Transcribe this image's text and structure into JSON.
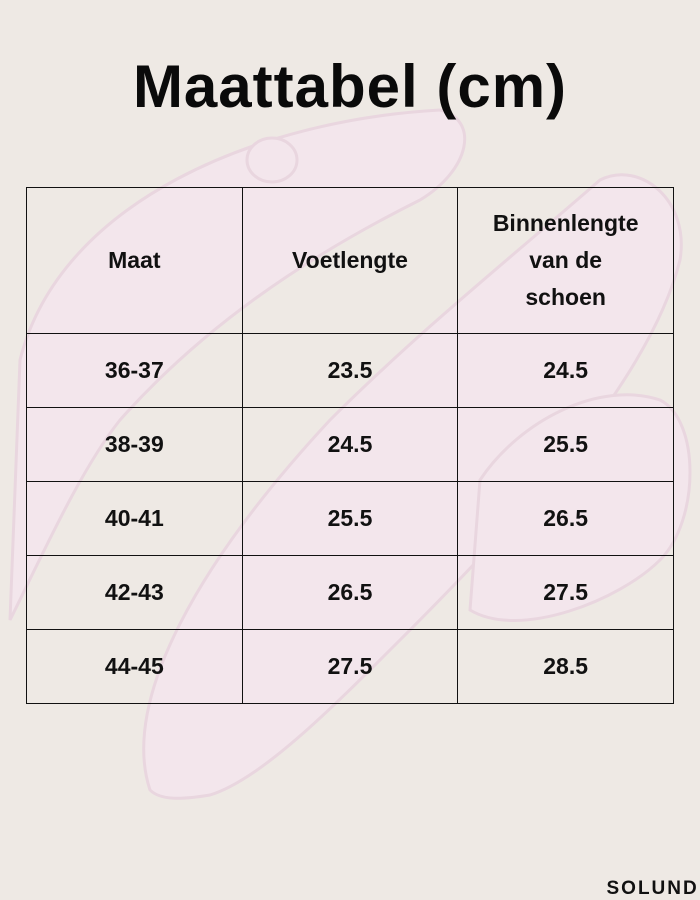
{
  "header": {
    "title": "Maattabel (cm)"
  },
  "table": {
    "columns": [
      "Maat",
      "Voetlengte",
      "Binnenlengte van de schoen"
    ],
    "rows": [
      [
        "36-37",
        "23.5",
        "24.5"
      ],
      [
        "38-39",
        "24.5",
        "25.5"
      ],
      [
        "40-41",
        "25.5",
        "26.5"
      ],
      [
        "42-43",
        "26.5",
        "27.5"
      ],
      [
        "44-45",
        "27.5",
        "28.5"
      ]
    ]
  },
  "footer": {
    "brand": "SOLUNDI"
  }
}
